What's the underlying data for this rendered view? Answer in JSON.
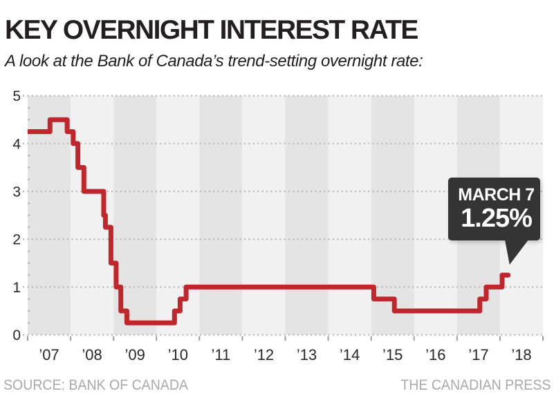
{
  "header": {
    "title": "KEY OVERNIGHT INTEREST RATE",
    "subtitle": "A look at the Bank of Canada’s trend-setting overnight rate:"
  },
  "chart_data": {
    "type": "line",
    "subtype": "step",
    "title": "",
    "xlabel": "",
    "ylabel": "",
    "x_range": [
      2007,
      2019
    ],
    "ylim": [
      0,
      5
    ],
    "y_ticks": [
      5,
      4,
      3,
      2,
      1,
      0
    ],
    "minor_tick_step": 0.25,
    "x_tick_labels": [
      "’07",
      "’08",
      "’09",
      "’10",
      "’11",
      "’12",
      "’13",
      "’14",
      "’15",
      "’16",
      "’17",
      "’18"
    ],
    "grid": true,
    "grid_color": "#b5b5b5",
    "band_colors": [
      "#e4e4e5",
      "#f1f1f2"
    ],
    "axis_text_color": "#2a2627",
    "series": [
      {
        "name": "Bank of Canada overnight rate (%)",
        "color": "#bf272d",
        "points": [
          [
            2007.0,
            4.25
          ],
          [
            2007.52,
            4.5
          ],
          [
            2007.92,
            4.25
          ],
          [
            2008.06,
            4.0
          ],
          [
            2008.17,
            3.5
          ],
          [
            2008.31,
            3.0
          ],
          [
            2008.77,
            2.5
          ],
          [
            2008.81,
            2.25
          ],
          [
            2008.94,
            1.5
          ],
          [
            2009.06,
            1.0
          ],
          [
            2009.17,
            0.5
          ],
          [
            2009.31,
            0.25
          ],
          [
            2010.42,
            0.5
          ],
          [
            2010.55,
            0.75
          ],
          [
            2010.69,
            1.0
          ],
          [
            2015.06,
            0.75
          ],
          [
            2015.54,
            0.5
          ],
          [
            2017.53,
            0.75
          ],
          [
            2017.68,
            1.0
          ],
          [
            2018.05,
            1.25
          ],
          [
            2018.19,
            1.25
          ]
        ]
      }
    ]
  },
  "callout": {
    "date": "MARCH 7",
    "value": "1.25%",
    "bg_color": "#343434"
  },
  "footer": {
    "source": "SOURCE: BANK OF CANADA",
    "credit": "THE CANADIAN PRESS"
  }
}
